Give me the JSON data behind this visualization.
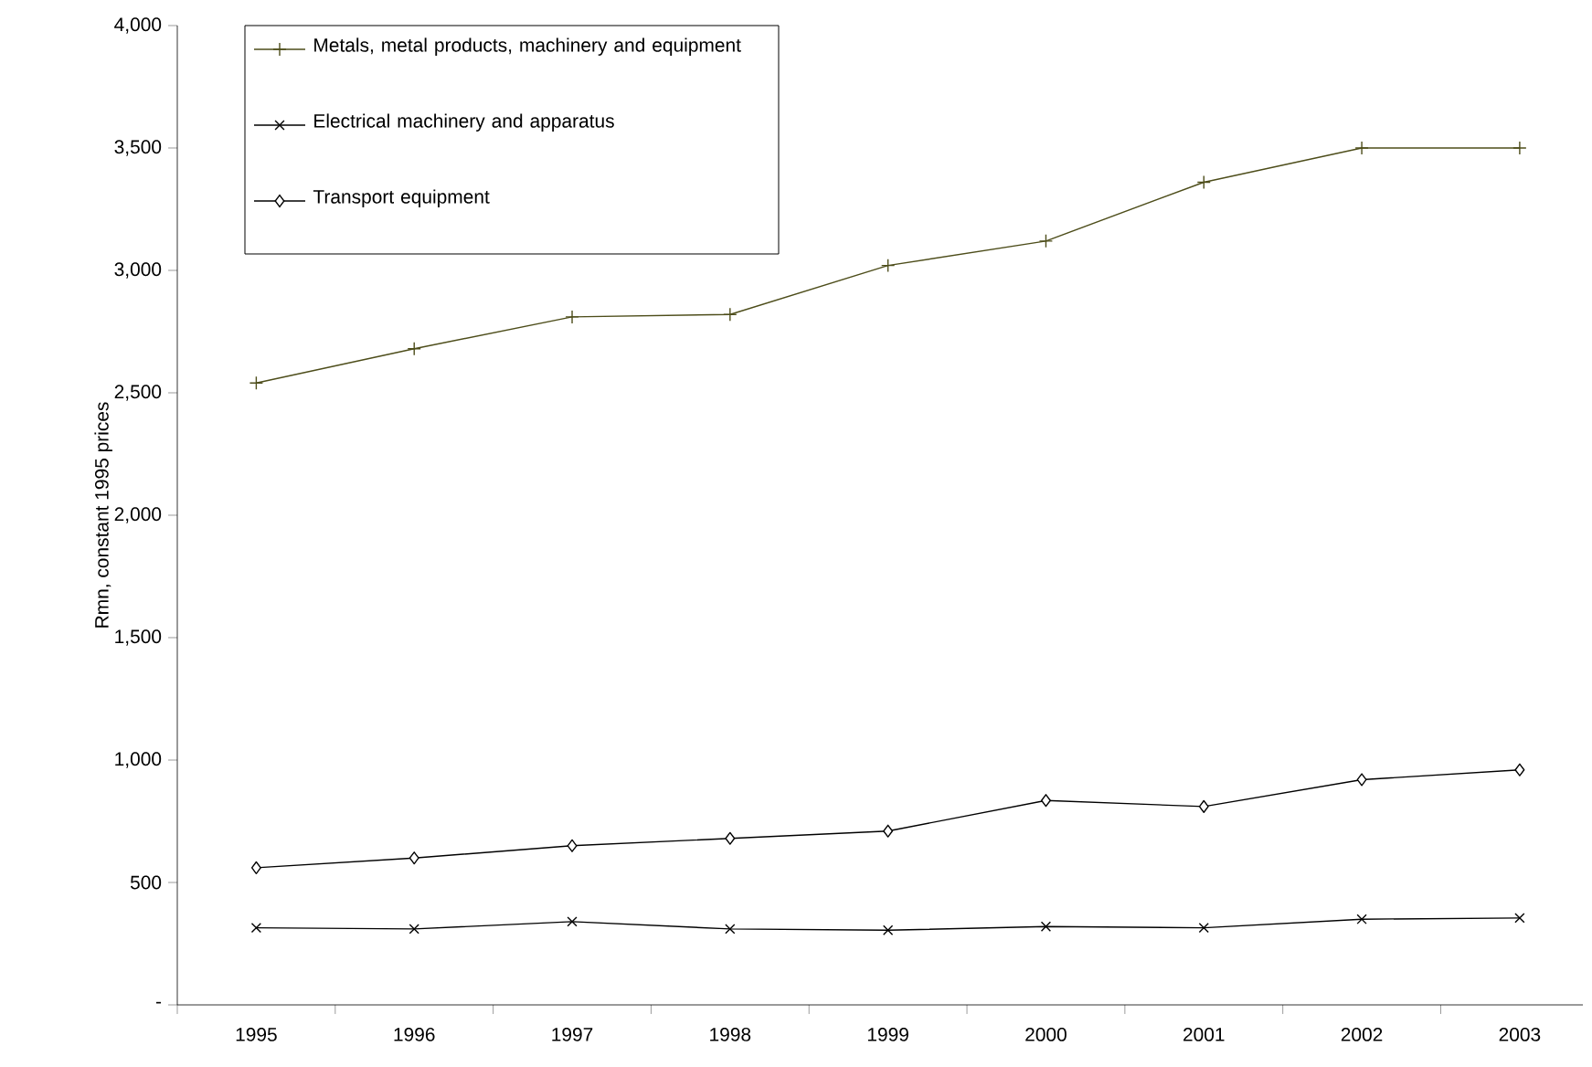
{
  "chart_data": {
    "type": "line",
    "ylabel": "Rmn, constant 1995 prices",
    "categories": [
      "1995",
      "1996",
      "1997",
      "1998",
      "1999",
      "2000",
      "2001",
      "2002",
      "2003"
    ],
    "series": [
      {
        "name": "Metals, metal products, machinery and equipment",
        "color": "#4d4d1a",
        "marker": "plus",
        "values": [
          2540,
          2680,
          2810,
          2820,
          3020,
          3120,
          3360,
          3500,
          3500
        ]
      },
      {
        "name": "Electrical machinery and apparatus",
        "color": "#000000",
        "marker": "cross",
        "values": [
          315,
          310,
          340,
          310,
          305,
          320,
          315,
          350,
          355
        ]
      },
      {
        "name": "Transport equipment",
        "color": "#000000",
        "marker": "diamond",
        "values": [
          560,
          600,
          650,
          680,
          710,
          835,
          810,
          920,
          960
        ]
      }
    ],
    "ylim": [
      0,
      4000
    ],
    "yticks": [
      {
        "value": 0,
        "label": "-"
      },
      500,
      {
        "value": 1000,
        "label": "1,000"
      },
      {
        "value": 1500,
        "label": "1,500"
      },
      {
        "value": 2000,
        "label": "2,000"
      },
      {
        "value": 2500,
        "label": "2,500"
      },
      {
        "value": 3000,
        "label": "3,000"
      },
      {
        "value": 3500,
        "label": "3,500"
      },
      {
        "value": 4000,
        "label": "4,000"
      }
    ],
    "legend": "top left",
    "line_style": "solid"
  }
}
